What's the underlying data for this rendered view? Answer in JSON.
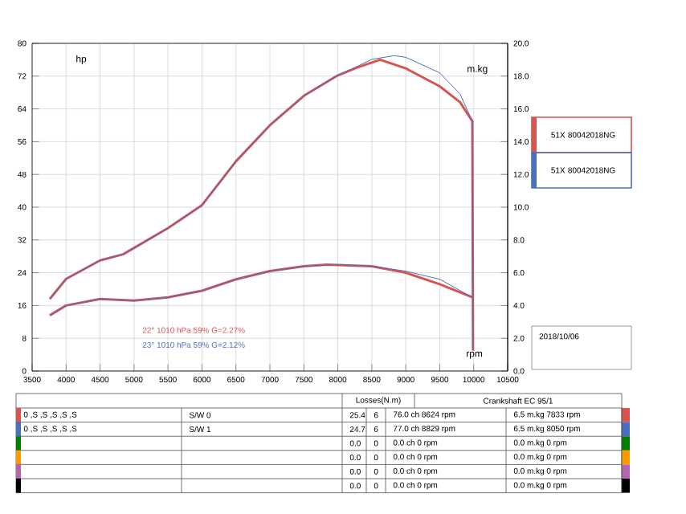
{
  "chart_data": {
    "type": "line",
    "xlabel": "rpm",
    "ylabel": "hp",
    "y2label": "m.kg",
    "xlim": [
      3500,
      10500
    ],
    "xticks": [
      3500,
      4000,
      4500,
      5000,
      5500,
      6000,
      6500,
      7000,
      7500,
      8000,
      8500,
      9000,
      9500,
      10000,
      10500
    ],
    "ylim": [
      0,
      80
    ],
    "yticks": [
      0,
      8,
      16,
      24,
      32,
      40,
      48,
      56,
      64,
      72,
      80
    ],
    "y2lim": [
      0,
      20
    ],
    "y2ticks": [
      {
        "value": 0,
        "label": "0.0"
      },
      {
        "value": 2,
        "label": "2.0"
      },
      {
        "value": 4,
        "label": "4.0"
      },
      {
        "value": 6,
        "label": "6.0"
      },
      {
        "value": 8,
        "label": "8.0"
      },
      {
        "value": 10,
        "label": "10.0"
      },
      {
        "value": 12,
        "label": "12.0"
      },
      {
        "value": 14,
        "label": "14.0"
      },
      {
        "value": 16,
        "label": "16.0"
      },
      {
        "value": 18,
        "label": "18.0"
      },
      {
        "value": 20,
        "label": "20.0"
      }
    ],
    "grid": true,
    "legend": "right",
    "series": [
      {
        "name": "51X 80042018NG",
        "color": "#d9534f",
        "x": [
          3760,
          4000,
          4500,
          4840,
          5500,
          6000,
          6500,
          7000,
          7500,
          8000,
          8300,
          8624,
          9000,
          9500,
          9800,
          9980,
          9990
        ],
        "values": [
          17.6,
          22.5,
          27,
          28.5,
          34.9,
          40.5,
          51.2,
          60,
          67.2,
          72.2,
          74.2,
          76.0,
          73.9,
          69.5,
          65.6,
          61,
          5
        ]
      },
      {
        "name": "51X 80042018NG",
        "color": "#4a6fc0",
        "x": [
          3760,
          4000,
          4500,
          4840,
          5500,
          6000,
          6500,
          7000,
          7500,
          8000,
          8300,
          8500,
          8829,
          9000,
          9500,
          9800,
          9980,
          9990
        ],
        "values": [
          17.6,
          22.5,
          27,
          28.5,
          34.9,
          40.5,
          51.2,
          60,
          67.2,
          72.2,
          74.5,
          76.1,
          77.0,
          76.6,
          72.8,
          67.6,
          61,
          5
        ]
      },
      {
        "color": "#d9534f",
        "axis": "y2",
        "x": [
          3760,
          4000,
          4500,
          5000,
          5500,
          6000,
          6500,
          7000,
          7500,
          7833,
          8500,
          9000,
          9500,
          9980
        ],
        "values": [
          3.4,
          4.0,
          4.4,
          4.3,
          4.5,
          4.9,
          5.6,
          6.1,
          6.4,
          6.5,
          6.4,
          6.0,
          5.3,
          4.5
        ]
      },
      {
        "color": "#4a6fc0",
        "axis": "y2",
        "x": [
          3760,
          4000,
          4500,
          5000,
          5500,
          6000,
          6500,
          7000,
          7500,
          8050,
          8500,
          9000,
          9500,
          9980
        ],
        "values": [
          3.4,
          4.0,
          4.4,
          4.3,
          4.5,
          4.9,
          5.6,
          6.1,
          6.4,
          6.5,
          6.4,
          6.1,
          5.6,
          4.5
        ]
      }
    ],
    "annotations": [
      "22° 1010 hPa 59% G=2.27%",
      "23° 1010 hPa 59% G=2.12%",
      "2018/10/06",
      "Losses(N.m)",
      "Crankshaft EC 95/1",
      "0 ,S ,S ,S ,S ,S",
      "S/W 0",
      "25.4",
      "6",
      "76.0 ch 8624 rpm",
      "6.5 m.kg 7833 rpm",
      "0 ,S ,S ,S ,S ,S",
      "S/W 1",
      "24.7",
      "6",
      "77.0 ch 8829 rpm",
      "6.5 m.kg 8050 rpm",
      null,
      null,
      "0.0",
      "0",
      "0.0 ch 0 rpm",
      "0.0 m.kg 0 rpm",
      null,
      null,
      "0.0",
      "0",
      "0.0 ch 0 rpm",
      "0.0 m.kg 0 rpm",
      null,
      null,
      "0.0",
      "0",
      "0.0 ch 0 rpm",
      "0.0 m.kg 0 rpm",
      null,
      null,
      "0.0",
      "0",
      "0.0 ch 0 rpm",
      "0.0 m.kg 0 rpm"
    ]
  }
}
